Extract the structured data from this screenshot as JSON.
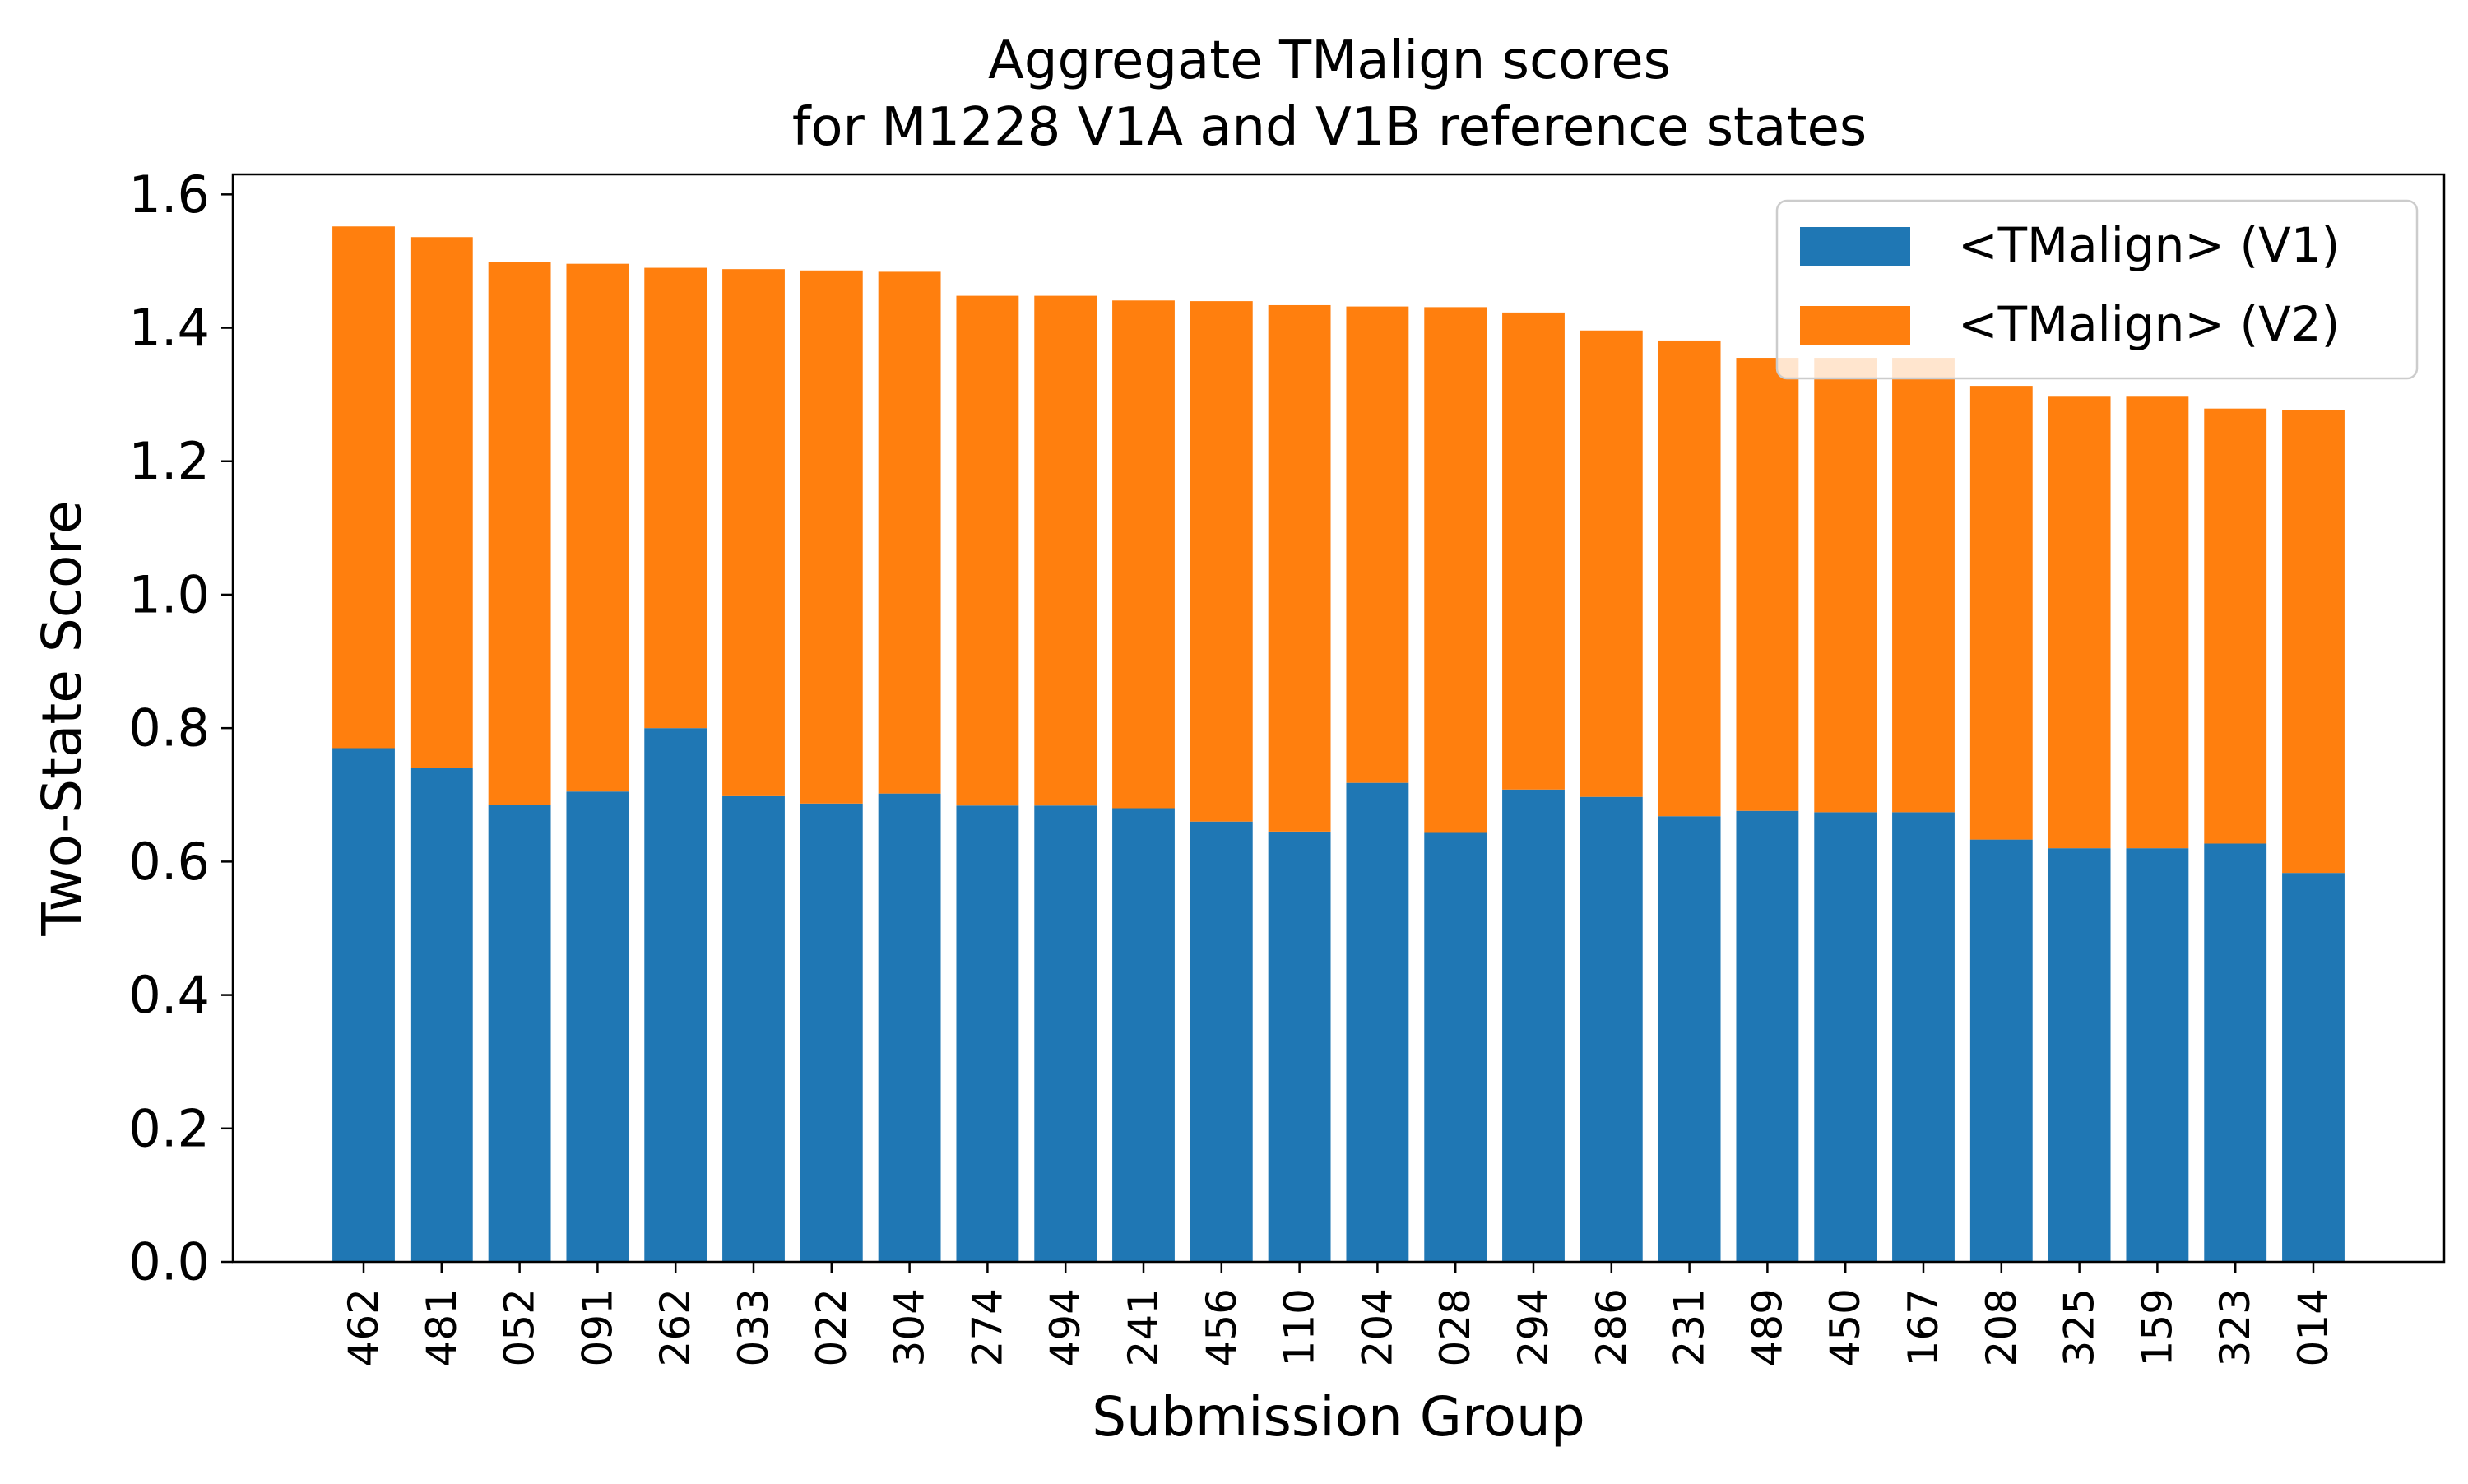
{
  "chart_data": {
    "type": "bar",
    "stacked": true,
    "title_line1": "Aggregate TMalign scores",
    "title_line2": "for M1228 V1A and V1B reference states",
    "xlabel": "Submission Group",
    "ylabel": "Two-State Score",
    "ylim": [
      0,
      1.63
    ],
    "yticks": [
      "0.0",
      "0.2",
      "0.4",
      "0.6",
      "0.8",
      "1.0",
      "1.2",
      "1.4",
      "1.6"
    ],
    "grid": false,
    "legend_position": "top-right",
    "categories": [
      "462",
      "481",
      "052",
      "091",
      "262",
      "033",
      "022",
      "304",
      "274",
      "494",
      "241",
      "456",
      "110",
      "204",
      "028",
      "294",
      "286",
      "231",
      "489",
      "450",
      "167",
      "208",
      "325",
      "159",
      "323",
      "014"
    ],
    "series": [
      {
        "name": "<TMalign> (V1)",
        "color": "#1f77b4",
        "values": [
          0.77,
          0.74,
          0.685,
          0.705,
          0.8,
          0.698,
          0.687,
          0.702,
          0.684,
          0.684,
          0.68,
          0.66,
          0.645,
          0.718,
          0.643,
          0.708,
          0.697,
          0.668,
          0.676,
          0.674,
          0.674,
          0.633,
          0.62,
          0.62,
          0.627,
          0.583
        ]
      },
      {
        "name": "<TMalign> (V2)",
        "color": "#ff7f0e",
        "values": [
          0.782,
          0.796,
          0.814,
          0.791,
          0.69,
          0.79,
          0.799,
          0.782,
          0.764,
          0.764,
          0.761,
          0.78,
          0.789,
          0.714,
          0.788,
          0.715,
          0.699,
          0.713,
          0.679,
          0.681,
          0.681,
          0.68,
          0.678,
          0.678,
          0.652,
          0.694
        ]
      }
    ]
  }
}
